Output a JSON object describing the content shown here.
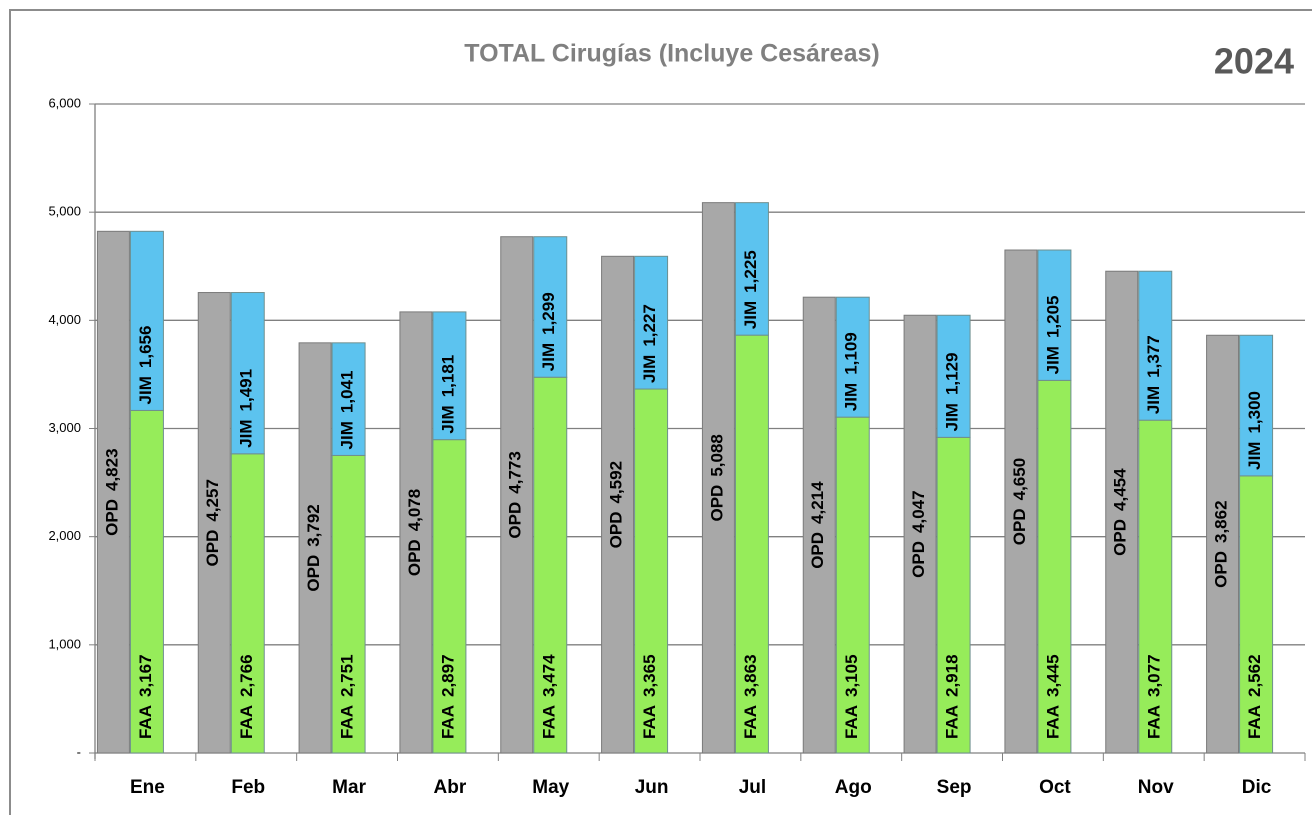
{
  "chart_data": {
    "type": "bar",
    "title": "TOTAL Cirugías (Incluye Cesáreas)",
    "subtitle": "2024",
    "categories": [
      "Ene",
      "Feb",
      "Mar",
      "Abr",
      "May",
      "Jun",
      "Jul",
      "Ago",
      "Sep",
      "Oct",
      "Nov",
      "Dic"
    ],
    "series": [
      {
        "name": "OPD",
        "color": "#a8a8a8",
        "values": [
          4823,
          4257,
          3792,
          4078,
          4773,
          4592,
          5088,
          4214,
          4047,
          4650,
          4454,
          3862
        ],
        "value_labels": [
          "4,823",
          "4,257",
          "3,792",
          "4,078",
          "4,773",
          "4,592",
          "5,088",
          "4,214",
          "4,047",
          "4,650",
          "4,454",
          "3,862"
        ]
      },
      {
        "name": "FAA",
        "color": "#96ec5a",
        "stacked": true,
        "values": [
          3167,
          2766,
          2751,
          2897,
          3474,
          3365,
          3863,
          3105,
          2918,
          3445,
          3077,
          2562
        ],
        "value_labels": [
          "3,167",
          "2,766",
          "2,751",
          "2,897",
          "3,474",
          "3,365",
          "3,863",
          "3,105",
          "2,918",
          "3,445",
          "3,077",
          "2,562"
        ]
      },
      {
        "name": "JIM",
        "color": "#5cc3ef",
        "stacked": true,
        "values": [
          1656,
          1491,
          1041,
          1181,
          1299,
          1227,
          1225,
          1109,
          1129,
          1205,
          1377,
          1300
        ],
        "value_labels": [
          "1,656",
          "1,491",
          "1,041",
          "1,181",
          "1,299",
          "1,227",
          "1,225",
          "1,109",
          "1,129",
          "1,205",
          "1,377",
          "1,300"
        ]
      }
    ],
    "ylim": [
      0,
      6000
    ],
    "yticks": [
      {
        "value": 0,
        "label": "-"
      },
      {
        "value": 1000,
        "label": "1,000"
      },
      {
        "value": 2000,
        "label": "2,000"
      },
      {
        "value": 3000,
        "label": "3,000"
      },
      {
        "value": 4000,
        "label": "4,000"
      },
      {
        "value": 5000,
        "label": "5,000"
      },
      {
        "value": 6000,
        "label": "6,000"
      }
    ],
    "grid": true
  }
}
